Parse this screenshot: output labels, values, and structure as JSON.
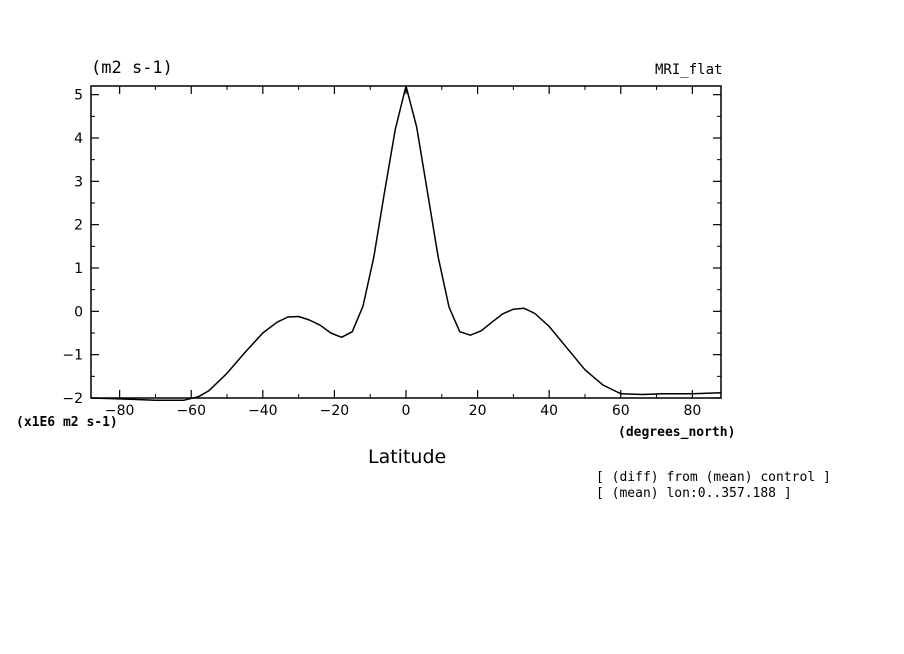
{
  "header": {
    "units_label": "(m2 s-1)",
    "model_label": "MRI_flat"
  },
  "footer": {
    "scale_label": "(x1E6 m2 s-1)",
    "x_units_label": "(degrees_north)",
    "x_title": "Latitude",
    "note_diff": "[ (diff) from (mean) control ]",
    "note_mean": "[ (mean) lon:0..357.188 ]"
  },
  "chart_data": {
    "type": "line",
    "xlabel": "Latitude",
    "ylabel": "(m2 s-1)",
    "xlim": [
      -88,
      88
    ],
    "ylim": [
      -2,
      5.2
    ],
    "xticks": [
      -80,
      -60,
      -40,
      -20,
      0,
      20,
      40,
      60,
      80
    ],
    "yticks": [
      -2,
      -1,
      0,
      1,
      2,
      3,
      4,
      5
    ],
    "grid": false,
    "series": [
      {
        "x": [
          -88,
          -80,
          -70,
          -62,
          -58,
          -55,
          -50,
          -45,
          -40,
          -36,
          -33,
          -30,
          -27,
          -24,
          -21,
          -18,
          -15,
          -12,
          -9,
          -6,
          -3,
          0,
          3,
          6,
          9,
          12,
          15,
          18,
          21,
          24,
          27,
          30,
          33,
          36,
          40,
          45,
          50,
          55,
          60,
          66,
          72,
          80,
          88
        ],
        "y": [
          -2.0,
          -2.02,
          -2.05,
          -2.05,
          -1.97,
          -1.83,
          -1.43,
          -0.95,
          -0.5,
          -0.25,
          -0.13,
          -0.12,
          -0.2,
          -0.32,
          -0.5,
          -0.6,
          -0.47,
          0.12,
          1.25,
          2.75,
          4.2,
          5.2,
          4.25,
          2.75,
          1.25,
          0.1,
          -0.47,
          -0.55,
          -0.45,
          -0.25,
          -0.06,
          0.05,
          0.07,
          -0.05,
          -0.35,
          -0.85,
          -1.35,
          -1.7,
          -1.9,
          -1.92,
          -1.9,
          -1.9,
          -1.88
        ]
      }
    ]
  }
}
